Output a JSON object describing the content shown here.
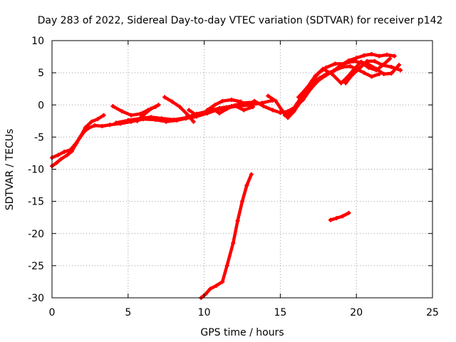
{
  "chart_data": {
    "type": "scatter",
    "title": "Day 283 of 2022, Sidereal Day-to-day VTEC variation (SDTVAR) for receiver p142",
    "xlabel": "GPS time / hours",
    "ylabel": "SDTVAR / TECUs",
    "xlim": [
      0,
      25
    ],
    "ylim": [
      -30,
      10
    ],
    "x_ticks": [
      "0",
      "5",
      "10",
      "15",
      "20",
      "25"
    ],
    "y_ticks": [
      "10",
      "5",
      "0",
      "-5",
      "-10",
      "-15",
      "-20",
      "-25",
      "-30"
    ],
    "x_tick_values": [
      0,
      5,
      10,
      15,
      20,
      25
    ],
    "y_tick_values": [
      10,
      5,
      0,
      -5,
      -10,
      -15,
      -20,
      -25,
      -30
    ],
    "grid": true,
    "legend": "none",
    "color": "#ff0000",
    "series": [
      {
        "values": [
          [
            0,
            -9.5
          ],
          [
            0.3,
            -9.0
          ],
          [
            0.6,
            -8.4
          ],
          [
            1.0,
            -7.8
          ],
          [
            1.3,
            -7.2
          ],
          [
            1.6,
            -6.0
          ],
          [
            1.9,
            -4.8
          ],
          [
            2.2,
            -3.5
          ],
          [
            2.6,
            -2.6
          ],
          [
            3.0,
            -2.2
          ],
          [
            3.4,
            -1.6
          ]
        ]
      },
      {
        "values": [
          [
            0,
            -8.2
          ],
          [
            0.4,
            -7.8
          ],
          [
            0.8,
            -7.3
          ],
          [
            1.2,
            -7.0
          ],
          [
            1.5,
            -6.2
          ],
          [
            1.8,
            -5.2
          ],
          [
            2.1,
            -4.2
          ],
          [
            2.4,
            -3.6
          ],
          [
            2.8,
            -3.2
          ],
          [
            3.3,
            -3.3
          ],
          [
            3.8,
            -3.1
          ],
          [
            4.5,
            -2.9
          ],
          [
            5.2,
            -2.6
          ],
          [
            6.0,
            -2.2
          ],
          [
            6.8,
            -2.3
          ],
          [
            7.5,
            -2.6
          ],
          [
            8.2,
            -2.4
          ],
          [
            8.8,
            -2.1
          ],
          [
            9.5,
            -1.8
          ],
          [
            10.2,
            -1.3
          ],
          [
            10.8,
            -0.8
          ],
          [
            11.5,
            -0.4
          ],
          [
            12.2,
            -0.2
          ],
          [
            13.0,
            0.0
          ],
          [
            13.8,
            0.3
          ],
          [
            14.5,
            0.7
          ]
        ]
      },
      {
        "values": [
          [
            4.2,
            -2.8
          ],
          [
            5.0,
            -2.4
          ],
          [
            5.8,
            -2.1
          ],
          [
            6.5,
            -1.9
          ],
          [
            7.2,
            -2.1
          ],
          [
            8.0,
            -2.3
          ],
          [
            8.8,
            -2.0
          ],
          [
            9.5,
            -1.4
          ],
          [
            10.2,
            -1.0
          ],
          [
            11.0,
            -0.5
          ],
          [
            11.8,
            -0.2
          ],
          [
            12.5,
            0.3
          ],
          [
            13.2,
            0.4
          ]
        ]
      },
      {
        "values": [
          [
            4.0,
            -0.2
          ],
          [
            4.6,
            -1.0
          ],
          [
            5.2,
            -1.6
          ],
          [
            5.8,
            -1.4
          ],
          [
            6.3,
            -0.8
          ],
          [
            6.8,
            -0.3
          ]
        ]
      },
      {
        "values": [
          [
            5.6,
            -2.5
          ],
          [
            6.0,
            -1.6
          ],
          [
            6.5,
            -0.6
          ],
          [
            7.0,
            0.0
          ]
        ]
      },
      {
        "values": [
          [
            7.4,
            1.2
          ],
          [
            7.9,
            0.5
          ],
          [
            8.4,
            -0.3
          ],
          [
            8.9,
            -1.5
          ],
          [
            9.3,
            -2.6
          ]
        ]
      },
      {
        "values": [
          [
            9.0,
            -0.8
          ],
          [
            9.5,
            -1.6
          ],
          [
            10.0,
            -1.2
          ],
          [
            10.5,
            -0.5
          ],
          [
            11.0,
            -1.3
          ],
          [
            11.5,
            -0.6
          ],
          [
            12.0,
            -0.1
          ],
          [
            12.6,
            -0.8
          ],
          [
            13.2,
            -0.3
          ]
        ]
      },
      {
        "values": [
          [
            10.2,
            -0.8
          ],
          [
            10.7,
            0.0
          ],
          [
            11.2,
            0.6
          ],
          [
            11.8,
            0.8
          ],
          [
            12.4,
            0.5
          ]
        ]
      },
      {
        "values": [
          [
            13.3,
            0.6
          ],
          [
            13.9,
            -0.2
          ],
          [
            14.5,
            -0.8
          ],
          [
            15.0,
            -1.2
          ],
          [
            15.5,
            -1.0
          ],
          [
            16.0,
            -0.3
          ],
          [
            16.5,
            0.8
          ],
          [
            17.0,
            2.5
          ],
          [
            17.5,
            3.8
          ],
          [
            18.0,
            4.6
          ],
          [
            18.5,
            5.3
          ],
          [
            19.0,
            6.2
          ],
          [
            19.5,
            6.9
          ],
          [
            20.0,
            7.3
          ],
          [
            20.5,
            7.7
          ],
          [
            21.0,
            7.9
          ],
          [
            21.5,
            7.6
          ],
          [
            22.0,
            7.8
          ],
          [
            22.5,
            7.6
          ]
        ]
      },
      {
        "values": [
          [
            14.2,
            1.4
          ],
          [
            14.7,
            0.6
          ],
          [
            15.1,
            -0.8
          ],
          [
            15.5,
            -2.0
          ],
          [
            15.9,
            -1.0
          ],
          [
            16.3,
            0.4
          ],
          [
            16.7,
            2.2
          ],
          [
            17.1,
            3.8
          ],
          [
            17.5,
            4.9
          ],
          [
            18.0,
            5.8
          ],
          [
            18.6,
            6.4
          ],
          [
            19.2,
            6.4
          ],
          [
            19.8,
            6.8
          ],
          [
            20.3,
            6.6
          ],
          [
            20.8,
            5.8
          ],
          [
            21.3,
            5.4
          ],
          [
            21.8,
            6.3
          ],
          [
            22.2,
            7.2
          ]
        ]
      },
      {
        "values": [
          [
            15.3,
            -1.6
          ],
          [
            15.7,
            -1.1
          ],
          [
            16.1,
            0.2
          ],
          [
            16.6,
            2.0
          ],
          [
            17.1,
            3.5
          ],
          [
            17.6,
            4.2
          ],
          [
            18.1,
            4.9
          ],
          [
            18.6,
            5.4
          ],
          [
            19.1,
            5.9
          ],
          [
            19.6,
            6.0
          ],
          [
            20.0,
            5.6
          ],
          [
            20.5,
            5.0
          ],
          [
            21.0,
            4.4
          ],
          [
            21.5,
            4.8
          ]
        ]
      },
      {
        "values": [
          [
            16.2,
            1.2
          ],
          [
            16.8,
            2.8
          ],
          [
            17.3,
            4.5
          ],
          [
            17.8,
            5.6
          ],
          [
            18.4,
            4.8
          ],
          [
            19.0,
            3.4
          ],
          [
            19.4,
            4.3
          ],
          [
            19.8,
            5.4
          ],
          [
            20.3,
            6.7
          ],
          [
            20.8,
            6.3
          ],
          [
            21.3,
            5.6
          ],
          [
            21.8,
            4.8
          ],
          [
            22.3,
            4.9
          ],
          [
            22.8,
            6.2
          ]
        ]
      },
      {
        "values": [
          [
            19.3,
            3.4
          ],
          [
            19.7,
            4.6
          ],
          [
            20.2,
            5.7
          ],
          [
            20.7,
            6.8
          ],
          [
            21.2,
            6.8
          ],
          [
            21.7,
            6.2
          ],
          [
            22.3,
            5.9
          ],
          [
            22.9,
            5.4
          ]
        ]
      },
      {
        "values": [
          [
            9.8,
            -30.0
          ],
          [
            10.1,
            -29.4
          ],
          [
            10.4,
            -28.6
          ],
          [
            10.8,
            -28.1
          ],
          [
            11.2,
            -27.5
          ],
          [
            11.5,
            -25.0
          ],
          [
            11.9,
            -21.5
          ],
          [
            12.2,
            -18.0
          ],
          [
            12.5,
            -15.0
          ],
          [
            12.8,
            -12.5
          ],
          [
            13.1,
            -10.8
          ]
        ]
      },
      {
        "values": [
          [
            18.3,
            -17.9
          ],
          [
            18.7,
            -17.6
          ],
          [
            19.1,
            -17.3
          ],
          [
            19.5,
            -16.8
          ]
        ]
      }
    ]
  }
}
